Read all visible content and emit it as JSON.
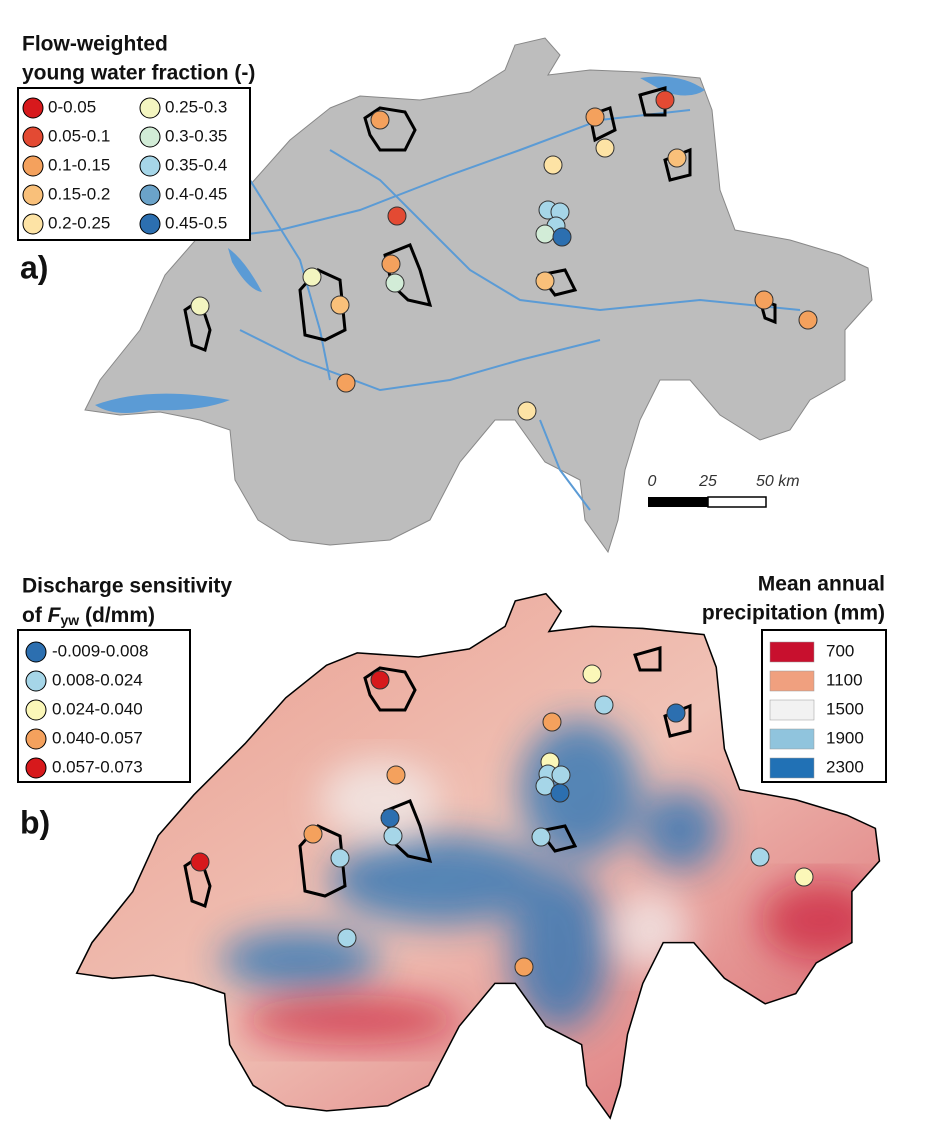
{
  "panel_a": {
    "label": "a)",
    "legend": {
      "title_lines": [
        "Flow-weighted",
        "young water fraction (-)"
      ],
      "items": [
        {
          "label": "0-0.05",
          "color": "#d7191c"
        },
        {
          "label": "0.05-0.1",
          "color": "#e34a33"
        },
        {
          "label": "0.1-0.15",
          "color": "#f4a15d"
        },
        {
          "label": "0.15-0.2",
          "color": "#f9c07a"
        },
        {
          "label": "0.2-0.25",
          "color": "#fde3a5"
        },
        {
          "label": "0.25-0.3",
          "color": "#f3f5c0"
        },
        {
          "label": "0.3-0.35",
          "color": "#d2ecd7"
        },
        {
          "label": "0.35-0.4",
          "color": "#a6d6e8"
        },
        {
          "label": "0.4-0.45",
          "color": "#6ba3c9"
        },
        {
          "label": "0.45-0.5",
          "color": "#2c6fb0"
        }
      ]
    },
    "scale_bar": {
      "labels": [
        "0",
        "25",
        "50 km"
      ]
    }
  },
  "panel_b": {
    "label": "b)",
    "legend": {
      "title_line1": "Discharge sensitivity",
      "title_line2": {
        "prefix": "of ",
        "symbol": "F",
        "subscript": "yw",
        "suffix": " (d/mm)"
      },
      "items": [
        {
          "label": "-0.009-0.008",
          "color": "#2c6fb0"
        },
        {
          "label": "0.008-0.024",
          "color": "#a6d6e8"
        },
        {
          "label": "0.024-0.040",
          "color": "#fbf7b8"
        },
        {
          "label": "0.040-0.057",
          "color": "#f4a15d"
        },
        {
          "label": "0.057-0.073",
          "color": "#d7191c"
        }
      ]
    },
    "precip_legend": {
      "title_lines": [
        "Mean annual",
        "precipitation (mm)"
      ],
      "items": [
        {
          "label": "700",
          "color": "#c8102e"
        },
        {
          "label": "1100",
          "color": "#f0a07f"
        },
        {
          "label": "1500",
          "color": "#f2f2f2"
        },
        {
          "label": "1900",
          "color": "#90c4dd"
        },
        {
          "label": "2300",
          "color": "#2171b5"
        }
      ]
    }
  }
}
